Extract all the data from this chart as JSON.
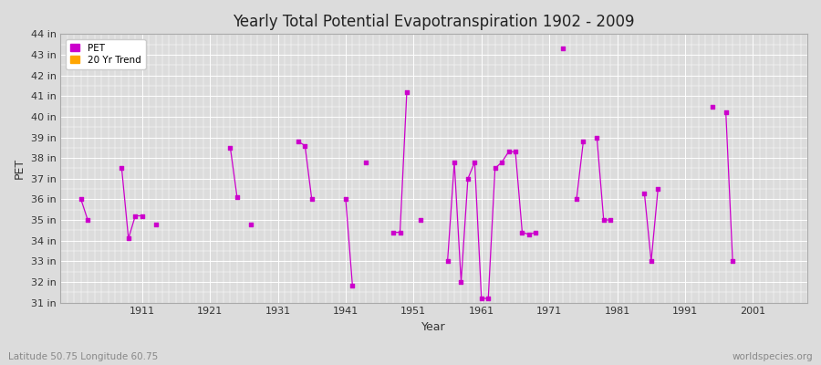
{
  "title": "Yearly Total Potential Evapotranspiration 1902 - 2009",
  "xlabel": "Year",
  "ylabel": "PET",
  "subtitle": "Latitude 50.75 Longitude 60.75",
  "watermark": "worldspecies.org",
  "pet_color": "#cc00cc",
  "trend_color": "#ffa500",
  "background_color": "#dcdcdc",
  "plot_bg_color": "#dcdcdc",
  "ylim": [
    31,
    44
  ],
  "ytick_labels": [
    "31 in",
    "32 in",
    "33 in",
    "34 in",
    "35 in",
    "36 in",
    "37 in",
    "38 in",
    "39 in",
    "40 in",
    "41 in",
    "42 in",
    "43 in",
    "44 in"
  ],
  "ytick_values": [
    31,
    32,
    33,
    34,
    35,
    36,
    37,
    38,
    39,
    40,
    41,
    42,
    43,
    44
  ],
  "xlim": [
    1899,
    2009
  ],
  "xtick_labels": [
    "1911",
    "1921",
    "1931",
    "1941",
    "1951",
    "1961",
    "1971",
    "1981",
    "1991",
    "2001"
  ],
  "xtick_values": [
    1911,
    1921,
    1931,
    1941,
    1951,
    1961,
    1971,
    1981,
    1991,
    2001
  ],
  "pet_data": [
    [
      1902,
      36.0
    ],
    [
      1903,
      35.0
    ],
    [
      1908,
      37.5
    ],
    [
      1909,
      34.1
    ],
    [
      1910,
      35.2
    ],
    [
      1911,
      35.2
    ],
    [
      1913,
      34.8
    ],
    [
      1924,
      38.5
    ],
    [
      1925,
      36.1
    ],
    [
      1927,
      34.8
    ],
    [
      1934,
      38.8
    ],
    [
      1935,
      38.6
    ],
    [
      1936,
      36.0
    ],
    [
      1941,
      36.0
    ],
    [
      1942,
      31.8
    ],
    [
      1944,
      37.8
    ],
    [
      1948,
      34.4
    ],
    [
      1949,
      34.4
    ],
    [
      1950,
      41.2
    ],
    [
      1952,
      35.0
    ],
    [
      1956,
      33.0
    ],
    [
      1957,
      37.8
    ],
    [
      1958,
      32.0
    ],
    [
      1959,
      37.0
    ],
    [
      1960,
      37.8
    ],
    [
      1961,
      31.2
    ],
    [
      1962,
      31.2
    ],
    [
      1963,
      37.5
    ],
    [
      1964,
      37.8
    ],
    [
      1965,
      38.3
    ],
    [
      1966,
      38.3
    ],
    [
      1967,
      34.4
    ],
    [
      1968,
      34.3
    ],
    [
      1969,
      34.4
    ],
    [
      1973,
      43.3
    ],
    [
      1975,
      36.0
    ],
    [
      1976,
      38.8
    ],
    [
      1978,
      39.0
    ],
    [
      1979,
      35.0
    ],
    [
      1980,
      35.0
    ],
    [
      1985,
      36.3
    ],
    [
      1986,
      33.0
    ],
    [
      1987,
      36.5
    ],
    [
      1995,
      40.5
    ],
    [
      1997,
      40.2
    ],
    [
      1998,
      33.0
    ]
  ],
  "connected_groups": [
    [
      1902,
      1903
    ],
    [
      1908,
      1909,
      1910,
      1911
    ],
    [
      1913
    ],
    [
      1924,
      1925
    ],
    [
      1927
    ],
    [
      1934,
      1935,
      1936
    ],
    [
      1941,
      1942
    ],
    [
      1944
    ],
    [
      1948,
      1949,
      1950
    ],
    [
      1952
    ],
    [
      1956,
      1957,
      1958,
      1959,
      1960,
      1961,
      1962,
      1963,
      1964,
      1965,
      1966,
      1967,
      1968,
      1969
    ],
    [
      1973
    ],
    [
      1975,
      1976
    ],
    [
      1978,
      1979,
      1980
    ],
    [
      1985,
      1986,
      1987
    ],
    [
      1995
    ],
    [
      1997,
      1998
    ]
  ]
}
